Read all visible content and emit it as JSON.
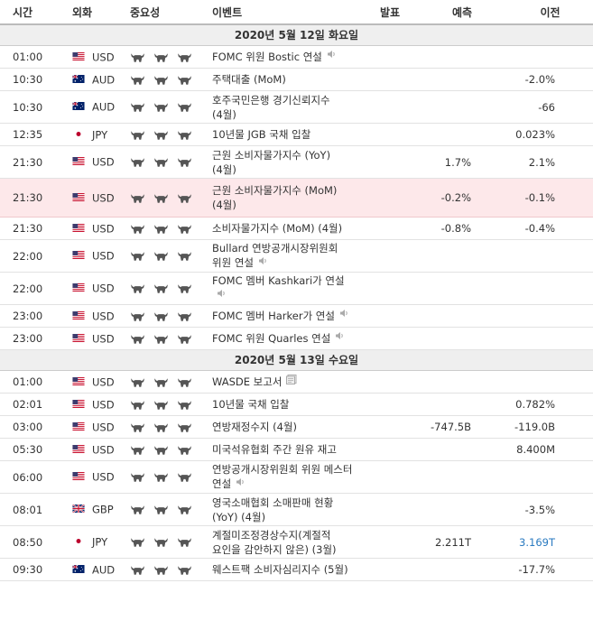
{
  "headers": {
    "time": "시간",
    "currency": "외화",
    "importance": "중요성",
    "event": "이벤트",
    "actual": "발표",
    "forecast": "예측",
    "previous": "이전"
  },
  "sections": [
    {
      "date": "2020년 5월 12일 화요일",
      "rows": [
        {
          "time": "01:00",
          "flag": "us",
          "currency": "USD",
          "event": "FOMC 위원 Bostic 연설",
          "icon": "speaker-icon",
          "actual": "",
          "forecast": "",
          "previous": ""
        },
        {
          "time": "10:30",
          "flag": "au",
          "currency": "AUD",
          "event": "주택대출 (MoM)",
          "icon": "",
          "actual": "",
          "forecast": "",
          "previous": "-2.0%"
        },
        {
          "time": "10:30",
          "flag": "au",
          "currency": "AUD",
          "event": "호주국민은행 경기신뢰지수 (4월)",
          "icon": "",
          "actual": "",
          "forecast": "",
          "previous": "-66"
        },
        {
          "time": "12:35",
          "flag": "jp",
          "currency": "JPY",
          "event": "10년물 JGB 국채 입찰",
          "icon": "",
          "actual": "",
          "forecast": "",
          "previous": "0.023%"
        },
        {
          "time": "21:30",
          "flag": "us",
          "currency": "USD",
          "event": "근원 소비자물가지수 (YoY) (4월)",
          "icon": "",
          "actual": "",
          "forecast": "1.7%",
          "previous": "2.1%"
        },
        {
          "time": "21:30",
          "flag": "us",
          "currency": "USD",
          "event": "근원 소비자물가지수 (MoM) (4월)",
          "icon": "",
          "actual": "",
          "forecast": "-0.2%",
          "previous": "-0.1%",
          "highlight": true
        },
        {
          "time": "21:30",
          "flag": "us",
          "currency": "USD",
          "event": "소비자물가지수 (MoM) (4월)",
          "icon": "",
          "actual": "",
          "forecast": "-0.8%",
          "previous": "-0.4%"
        },
        {
          "time": "22:00",
          "flag": "us",
          "currency": "USD",
          "event": "Bullard 연방공개시장위원회 위원 연설",
          "icon": "speaker-icon",
          "actual": "",
          "forecast": "",
          "previous": ""
        },
        {
          "time": "22:00",
          "flag": "us",
          "currency": "USD",
          "event": "FOMC 멤버 Kashkari가 연설",
          "icon": "speaker-icon",
          "actual": "",
          "forecast": "",
          "previous": ""
        },
        {
          "time": "23:00",
          "flag": "us",
          "currency": "USD",
          "event": "FOMC 멤버 Harker가 연설",
          "icon": "speaker-icon",
          "actual": "",
          "forecast": "",
          "previous": ""
        },
        {
          "time": "23:00",
          "flag": "us",
          "currency": "USD",
          "event": "FOMC 위원 Quarles 연설",
          "icon": "speaker-icon",
          "actual": "",
          "forecast": "",
          "previous": ""
        }
      ]
    },
    {
      "date": "2020년 5월 13일 수요일",
      "rows": [
        {
          "time": "01:00",
          "flag": "us",
          "currency": "USD",
          "event": "WASDE 보고서",
          "icon": "report-icon",
          "actual": "",
          "forecast": "",
          "previous": ""
        },
        {
          "time": "02:01",
          "flag": "us",
          "currency": "USD",
          "event": "10년물 국채 입찰",
          "icon": "",
          "actual": "",
          "forecast": "",
          "previous": "0.782%"
        },
        {
          "time": "03:00",
          "flag": "us",
          "currency": "USD",
          "event": "연방재정수지 (4월)",
          "icon": "",
          "actual": "",
          "forecast": "-747.5B",
          "previous": "-119.0B"
        },
        {
          "time": "05:30",
          "flag": "us",
          "currency": "USD",
          "event": "미국석유협회 주간 원유 재고",
          "icon": "",
          "actual": "",
          "forecast": "",
          "previous": "8.400M"
        },
        {
          "time": "06:00",
          "flag": "us",
          "currency": "USD",
          "event": "연방공개시장위원회 위원 메스터 연설",
          "icon": "speaker-icon",
          "actual": "",
          "forecast": "",
          "previous": ""
        },
        {
          "time": "08:01",
          "flag": "gb",
          "currency": "GBP",
          "event": "영국소매협회 소매판매 현황 (YoY) (4월)",
          "icon": "",
          "actual": "",
          "forecast": "",
          "previous": "-3.5%"
        },
        {
          "time": "08:50",
          "flag": "jp",
          "currency": "JPY",
          "event": "계절미조정경상수지(계절적 요인을 감안하지 않은) (3월)",
          "icon": "",
          "actual": "",
          "forecast": "2.211T",
          "previous": "3.169T",
          "previous_color": "#2a7ac0"
        },
        {
          "time": "09:30",
          "flag": "au",
          "currency": "AUD",
          "event": "웨스트팩 소비자심리지수 (5월)",
          "icon": "",
          "actual": "",
          "forecast": "",
          "previous": "-17.7%"
        }
      ]
    }
  ]
}
